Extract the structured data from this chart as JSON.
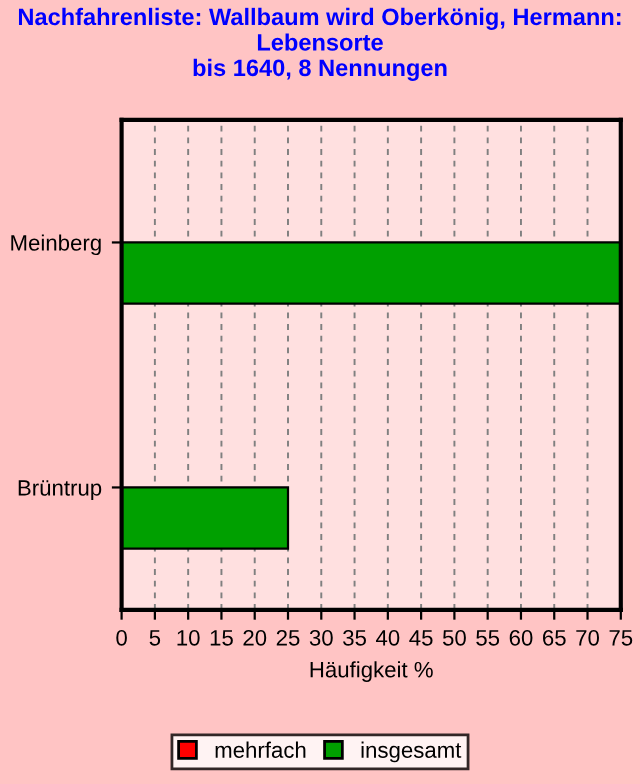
{
  "chart_data": {
    "type": "bar",
    "orientation": "horizontal",
    "title": "Nachfahrenliste: Wallbaum wird Oberkönig, Hermann:\nLebensorte\nbis 1640, 8 Nennungen",
    "xlabel": "Häufigkeit %",
    "categories": [
      "Meinberg",
      "Brüntrup"
    ],
    "series": [
      {
        "name": "mehrfach",
        "color": "#ff0000",
        "values": [
          0,
          0
        ]
      },
      {
        "name": "insgesamt",
        "color": "#00a000",
        "values": [
          75,
          25
        ]
      }
    ],
    "xlim": [
      0,
      75
    ],
    "xticks": [
      0,
      5,
      10,
      15,
      20,
      25,
      30,
      35,
      40,
      45,
      50,
      55,
      60,
      65,
      70,
      75
    ],
    "grid": "x",
    "legend": "bottom"
  }
}
